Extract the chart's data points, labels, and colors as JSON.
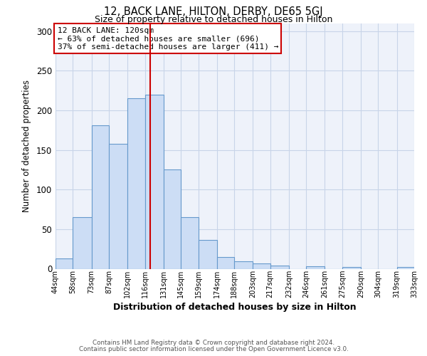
{
  "title": "12, BACK LANE, HILTON, DERBY, DE65 5GJ",
  "subtitle": "Size of property relative to detached houses in Hilton",
  "xlabel": "Distribution of detached houses by size in Hilton",
  "ylabel": "Number of detached properties",
  "bar_color": "#ccddf5",
  "bar_edge_color": "#6699cc",
  "grid_color": "#c8d4e8",
  "background_color": "#eef2fa",
  "vline_x": 120,
  "vline_color": "#cc0000",
  "annotation_text": "12 BACK LANE: 120sqm\n← 63% of detached houses are smaller (696)\n37% of semi-detached houses are larger (411) →",
  "annotation_box_color": "#ffffff",
  "annotation_box_edge": "#cc0000",
  "bin_edges": [
    44,
    58,
    73,
    87,
    102,
    116,
    131,
    145,
    159,
    174,
    188,
    203,
    217,
    232,
    246,
    261,
    275,
    290,
    304,
    319,
    333
  ],
  "bar_heights": [
    13,
    65,
    181,
    158,
    215,
    220,
    125,
    65,
    36,
    15,
    9,
    7,
    4,
    0,
    3,
    0,
    2,
    0,
    0,
    2
  ],
  "ylim": [
    0,
    310
  ],
  "yticks": [
    0,
    50,
    100,
    150,
    200,
    250,
    300
  ],
  "footer_line1": "Contains HM Land Registry data © Crown copyright and database right 2024.",
  "footer_line2": "Contains public sector information licensed under the Open Government Licence v3.0."
}
